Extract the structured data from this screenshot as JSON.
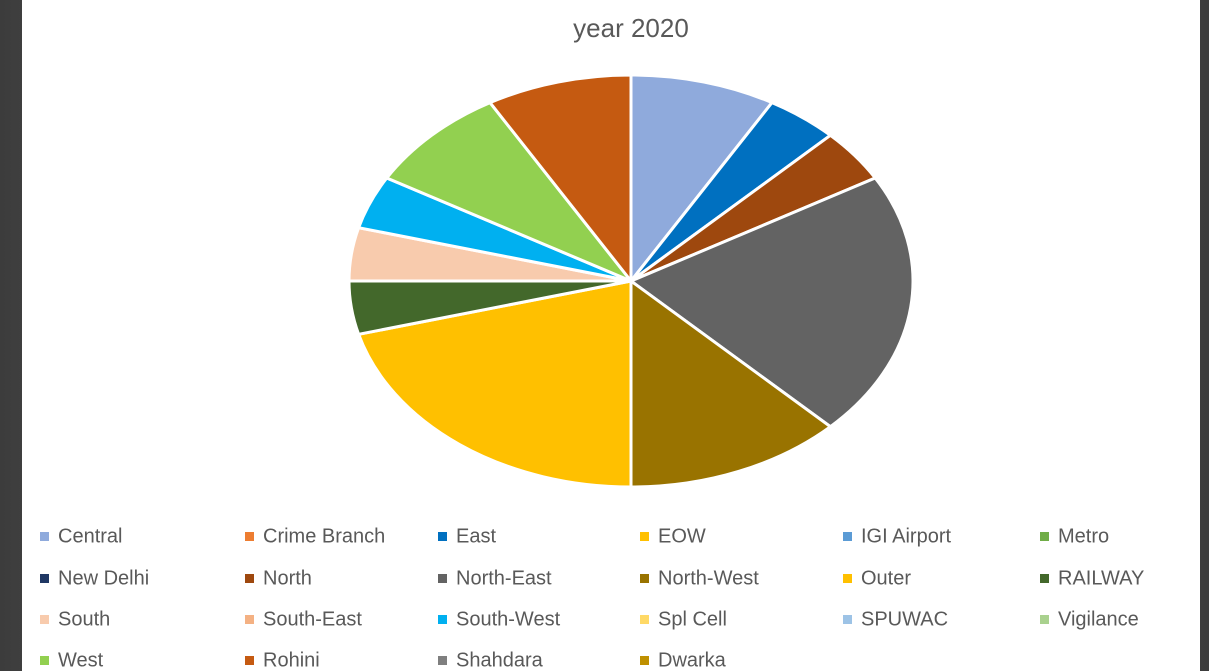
{
  "chart_data": {
    "type": "pie",
    "title": "year 2020",
    "categories": [
      "Central",
      "Crime Branch",
      "East",
      "EOW",
      "IGI Airport",
      "Metro",
      "New Delhi",
      "North",
      "North-East",
      "North-West",
      "Outer",
      "RAILWAY",
      "South",
      "South-East",
      "South-West",
      "Spl Cell",
      "SPUWAC",
      "Vigilance",
      "West",
      "Rohini",
      "Shahdara",
      "Dwarka"
    ],
    "values": [
      2,
      0,
      1,
      0,
      0,
      0,
      0,
      1,
      5,
      3,
      5,
      1,
      1,
      0,
      1,
      0,
      0,
      0,
      2,
      2,
      0,
      0
    ],
    "colors": [
      "#8FAADC",
      "#ED7D31",
      "#0070C0",
      "#FFC000",
      "#5B9BD5",
      "#70AD47",
      "#203864",
      "#9E480E",
      "#636363",
      "#997300",
      "#FFC000",
      "#43682B",
      "#F8CBAD",
      "#F4B183",
      "#00B0F0",
      "#FFD966",
      "#9DC3E6",
      "#A9D18E",
      "#92D050",
      "#C55A11",
      "#7F7F7F",
      "#BF9000"
    ]
  }
}
